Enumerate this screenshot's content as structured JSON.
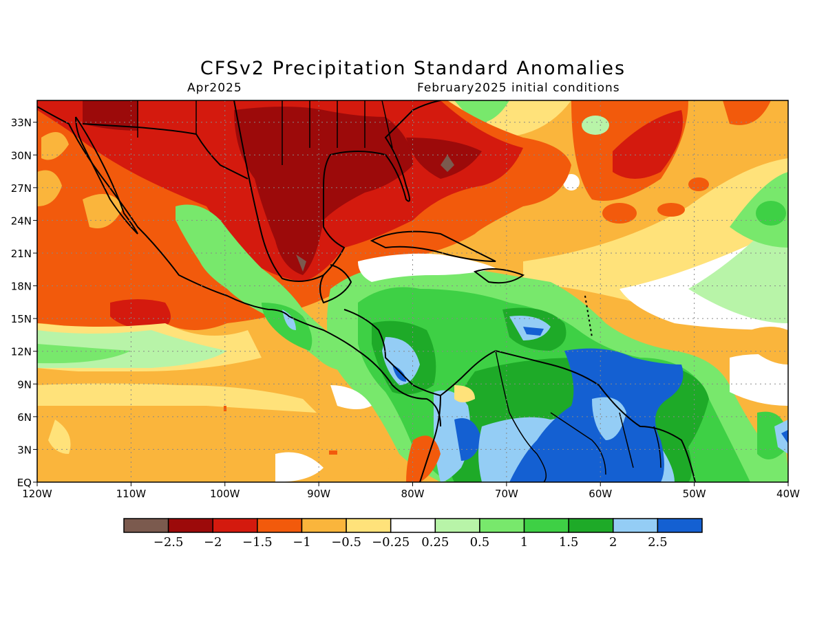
{
  "title": "CFSv2 Precipitation Standard Anomalies",
  "valid_month": "Apr2025",
  "initial_conditions": "February2025 initial conditions",
  "map": {
    "lon_range": [
      -120,
      -40
    ],
    "lat_range": [
      0,
      35
    ],
    "lat_ticks": [
      {
        "lat": 33,
        "label": "33N"
      },
      {
        "lat": 30,
        "label": "30N"
      },
      {
        "lat": 27,
        "label": "27N"
      },
      {
        "lat": 24,
        "label": "24N"
      },
      {
        "lat": 21,
        "label": "21N"
      },
      {
        "lat": 18,
        "label": "18N"
      },
      {
        "lat": 15,
        "label": "15N"
      },
      {
        "lat": 12,
        "label": "12N"
      },
      {
        "lat": 9,
        "label": "9N"
      },
      {
        "lat": 6,
        "label": "6N"
      },
      {
        "lat": 3,
        "label": "3N"
      },
      {
        "lat": 0,
        "label": "EQ"
      }
    ],
    "lon_ticks": [
      {
        "lon": -120,
        "label": "120W"
      },
      {
        "lon": -110,
        "label": "110W"
      },
      {
        "lon": -100,
        "label": "100W"
      },
      {
        "lon": -90,
        "label": "90W"
      },
      {
        "lon": -80,
        "label": "80W"
      },
      {
        "lon": -70,
        "label": "70W"
      },
      {
        "lon": -60,
        "label": "60W"
      },
      {
        "lon": -50,
        "label": "50W"
      },
      {
        "lon": -40,
        "label": "40W"
      }
    ],
    "grid": "dotted"
  },
  "colorbar": {
    "colors": [
      "#7b5a4e",
      "#9c0a0a",
      "#d41a0e",
      "#f25a0c",
      "#fab53c",
      "#ffe27a",
      "#ffffff",
      "#b8f4a8",
      "#78e86c",
      "#3ed045",
      "#1eaa28",
      "#94cdf5",
      "#1460d2"
    ],
    "labels": [
      "−2.5",
      "−2",
      "−1.5",
      "−1",
      "−0.5",
      "−0.25",
      "0.25",
      "0.5",
      "1",
      "1.5",
      "2",
      "2.5"
    ]
  }
}
